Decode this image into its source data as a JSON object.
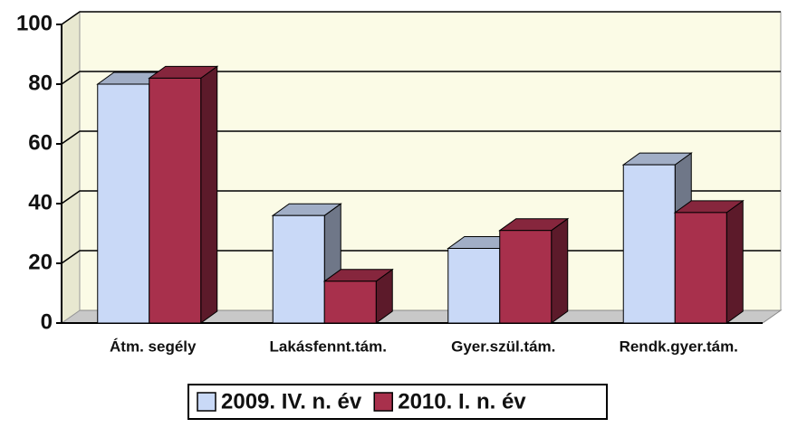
{
  "chart_data": {
    "type": "bar3d",
    "categories": [
      "Átm. segély",
      "Lakásfennt.tám.",
      "Gyer.szül.tám.",
      "Rendk.gyer.tám."
    ],
    "series": [
      {
        "name": "2009. IV. n. év",
        "color": "#c9d9f7",
        "values": [
          80,
          36,
          25,
          53
        ]
      },
      {
        "name": "2010. I. n. év",
        "color": "#a8304c",
        "values": [
          82,
          14,
          31,
          37
        ]
      }
    ],
    "ylim": [
      0,
      100
    ],
    "yticks": [
      0,
      20,
      40,
      60,
      80,
      100
    ],
    "grid": true,
    "legend": "bottom"
  }
}
